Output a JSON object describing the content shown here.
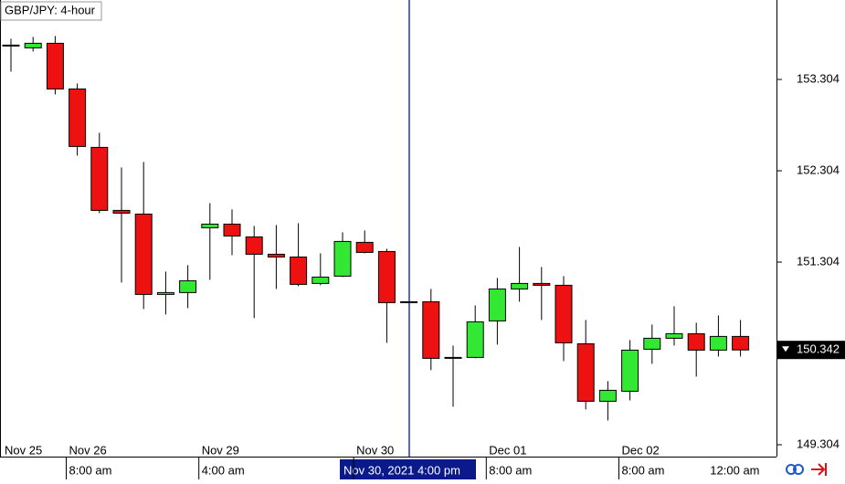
{
  "chart_data": {
    "type": "candlestick",
    "title": "GBP/JPY: 4-hour",
    "series": {
      "open": [
        153.68,
        153.65,
        153.7,
        153.2,
        152.56,
        151.87,
        151.83,
        150.95,
        150.97,
        151.68,
        151.72,
        151.58,
        151.39,
        151.36,
        151.07,
        151.15,
        151.52,
        151.42,
        150.87,
        150.87,
        150.26,
        150.26,
        150.66,
        151.01,
        151.07,
        151.05,
        150.41,
        149.78,
        149.89,
        150.35,
        150.47,
        150.52,
        150.34,
        150.49
      ],
      "high": [
        153.75,
        153.77,
        153.78,
        153.26,
        152.72,
        152.34,
        152.4,
        151.2,
        151.27,
        151.95,
        151.88,
        151.7,
        151.71,
        151.73,
        151.4,
        151.63,
        151.65,
        151.45,
        150.87,
        151.01,
        150.39,
        150.83,
        151.13,
        151.47,
        151.25,
        151.15,
        150.67,
        150.0,
        150.45,
        150.62,
        150.82,
        150.64,
        150.72,
        150.67
      ],
      "low": [
        153.39,
        153.61,
        153.14,
        152.47,
        151.84,
        151.08,
        150.79,
        150.73,
        150.8,
        151.11,
        151.38,
        150.69,
        151.01,
        151.04,
        151.05,
        151.14,
        151.4,
        150.42,
        150.86,
        150.12,
        149.72,
        150.25,
        150.4,
        150.87,
        150.67,
        150.22,
        149.69,
        149.57,
        149.79,
        150.19,
        150.39,
        150.05,
        150.27,
        150.27
      ],
      "close": [
        153.67,
        153.7,
        153.2,
        152.57,
        151.87,
        151.84,
        150.95,
        150.97,
        151.1,
        151.72,
        151.59,
        151.39,
        151.36,
        151.06,
        151.14,
        151.53,
        151.41,
        150.86,
        150.86,
        150.25,
        150.25,
        150.65,
        151.01,
        151.07,
        151.05,
        150.42,
        149.78,
        149.9,
        150.34,
        150.47,
        150.52,
        150.34,
        150.49,
        150.342
      ]
    },
    "up_color": "#33e833",
    "down_color": "#ee1111",
    "ylim": [
      149.174,
      154.174
    ],
    "yticks": [
      149.304,
      150.304,
      151.304,
      152.304,
      153.304
    ],
    "date_labels": [
      "Nov 25",
      "Nov 26",
      "Nov 29",
      "Nov 30",
      "Dec 01",
      "Dec 02"
    ],
    "time_labels": [
      "8:00 am",
      "4:00 am",
      "8:00 am",
      "8:00 am",
      "12:00 am"
    ],
    "crosshair_label": "Nov 30, 2021 4:00 pm"
  }
}
